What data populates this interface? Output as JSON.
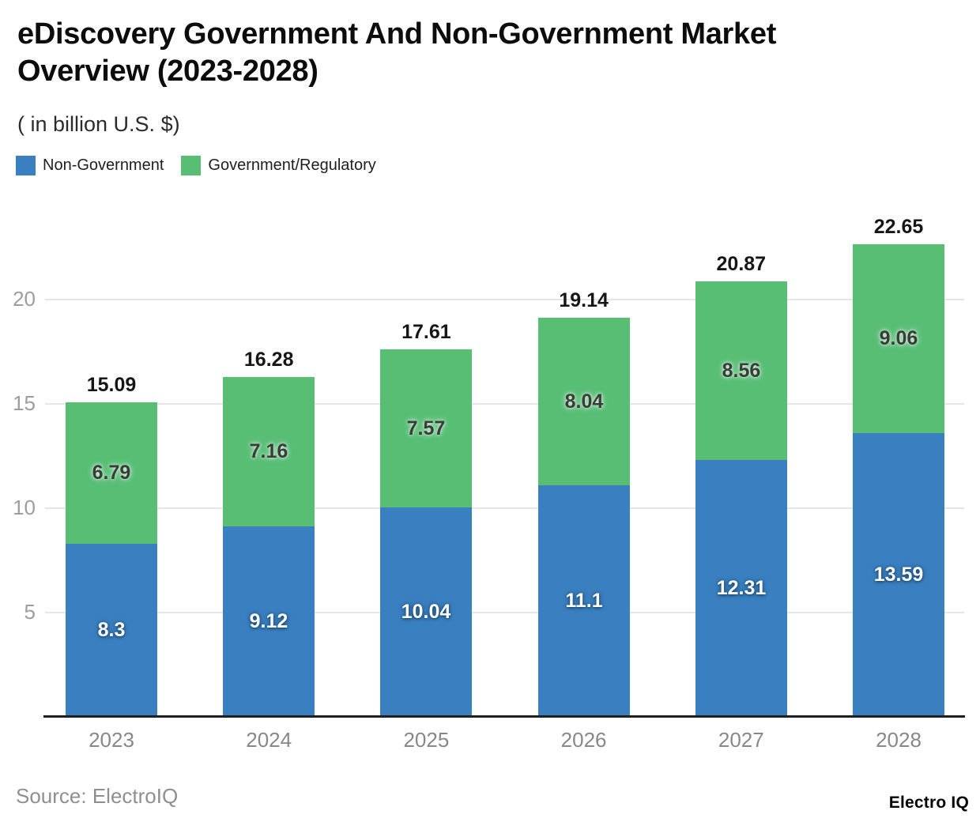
{
  "header": {
    "title": "eDiscovery Government And Non-Government Market Overview (2023-2028)",
    "subtitle": "( in billion U.S. $)"
  },
  "legend": {
    "items": [
      {
        "label": "Non-Government",
        "color": "#3a80c1"
      },
      {
        "label": "Government/Regulatory",
        "color": "#57be74"
      }
    ]
  },
  "chart_data": {
    "type": "bar",
    "stacked": true,
    "title": "eDiscovery Government And Non-Government Market Overview (2023-2028)",
    "units": "billion U.S. $",
    "categories": [
      "2023",
      "2024",
      "2025",
      "2026",
      "2027",
      "2028"
    ],
    "series": [
      {
        "name": "Non-Government",
        "color": "#3a80c1",
        "values": [
          8.3,
          9.12,
          10.04,
          11.1,
          12.31,
          13.59
        ]
      },
      {
        "name": "Government/Regulatory",
        "color": "#57be74",
        "values": [
          6.79,
          7.16,
          7.57,
          8.04,
          8.56,
          9.06
        ]
      }
    ],
    "totals": [
      15.09,
      16.28,
      17.61,
      19.14,
      20.87,
      22.65
    ],
    "yticks": [
      5,
      10,
      15,
      20
    ],
    "ylim": [
      0,
      23
    ],
    "grid": true,
    "legend_position": "top-left"
  },
  "footer": {
    "source": "Source: ElectroIQ",
    "brand": "Electro IQ"
  }
}
